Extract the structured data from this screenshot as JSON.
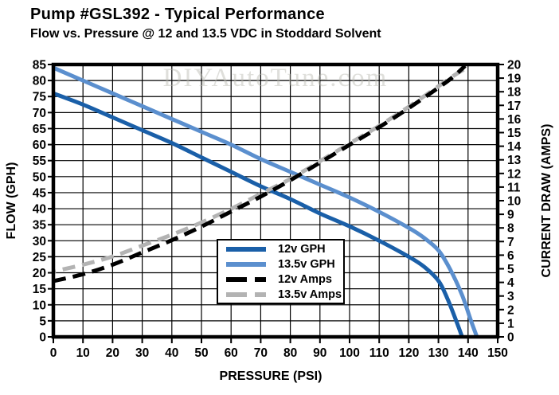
{
  "chart_data": {
    "type": "line",
    "title": "Pump #GSL392 - Typical Performance",
    "subtitle": "Flow vs. Pressure @ 12 and 13.5 VDC in Stoddard Solvent",
    "xlabel": "PRESSURE (PSI)",
    "ylabel_left": "FLOW (GPH)",
    "ylabel_right": "CURRENT DRAW (AMPS)",
    "watermark": "DIYAutoTune.com",
    "grid": true,
    "legend_position": "inside-lower-left-center",
    "xlim": [
      0,
      150
    ],
    "ylim_left": [
      0,
      85
    ],
    "ylim_right": [
      0,
      20
    ],
    "x_ticks": [
      0,
      10,
      20,
      30,
      40,
      50,
      60,
      70,
      80,
      90,
      100,
      110,
      120,
      130,
      140,
      150
    ],
    "y_ticks_left": [
      85,
      80,
      75,
      70,
      65,
      60,
      55,
      50,
      45,
      40,
      35,
      30,
      25,
      20,
      15,
      10,
      5,
      0
    ],
    "y_ticks_right": [
      20,
      19,
      18,
      17,
      16,
      15,
      14,
      13,
      12,
      11,
      10,
      9,
      8,
      7,
      6,
      5,
      4,
      3,
      2,
      1,
      0
    ],
    "colors": {
      "blue_12v": "#1a5fa8",
      "blue_135v": "#5b8fce",
      "black_12v": "#000000",
      "gray_135v": "#b3b3b3"
    },
    "series": [
      {
        "name": "12v GPH",
        "axis": "left",
        "style": "solid",
        "color": "#1a5fa8",
        "points": [
          [
            0,
            76
          ],
          [
            10,
            72.5
          ],
          [
            20,
            68.5
          ],
          [
            30,
            64.5
          ],
          [
            40,
            60.5
          ],
          [
            50,
            56
          ],
          [
            60,
            51.5
          ],
          [
            70,
            47
          ],
          [
            80,
            43
          ],
          [
            90,
            38.5
          ],
          [
            100,
            34.5
          ],
          [
            110,
            30
          ],
          [
            120,
            25
          ],
          [
            125,
            22
          ],
          [
            130,
            17.5
          ],
          [
            133,
            12
          ],
          [
            136,
            5
          ],
          [
            138,
            0
          ]
        ]
      },
      {
        "name": "13.5v GPH",
        "axis": "left",
        "style": "solid",
        "color": "#5b8fce",
        "points": [
          [
            0,
            84
          ],
          [
            10,
            80
          ],
          [
            20,
            76
          ],
          [
            30,
            72
          ],
          [
            40,
            68
          ],
          [
            50,
            64
          ],
          [
            60,
            60
          ],
          [
            70,
            55.5
          ],
          [
            80,
            51.5
          ],
          [
            90,
            47.5
          ],
          [
            100,
            43.5
          ],
          [
            110,
            39
          ],
          [
            120,
            34
          ],
          [
            125,
            31
          ],
          [
            130,
            27
          ],
          [
            134,
            21
          ],
          [
            138,
            13
          ],
          [
            141,
            5
          ],
          [
            143,
            0
          ]
        ]
      },
      {
        "name": "12v Amps",
        "axis": "right",
        "style": "dashed",
        "color": "#000000",
        "points": [
          [
            0,
            4.1
          ],
          [
            10,
            4.6
          ],
          [
            20,
            5.3
          ],
          [
            30,
            6.2
          ],
          [
            40,
            7.1
          ],
          [
            50,
            8.1
          ],
          [
            60,
            9.2
          ],
          [
            70,
            10.3
          ],
          [
            80,
            11.5
          ],
          [
            90,
            12.8
          ],
          [
            100,
            14.1
          ],
          [
            110,
            15.4
          ],
          [
            120,
            16.8
          ],
          [
            130,
            18.3
          ],
          [
            135,
            19.1
          ],
          [
            139,
            19.9
          ]
        ]
      },
      {
        "name": "13.5v Amps",
        "axis": "right",
        "style": "dashed",
        "color": "#b3b3b3",
        "points": [
          [
            0,
            4.8
          ],
          [
            10,
            5.3
          ],
          [
            20,
            5.9
          ],
          [
            30,
            6.7
          ],
          [
            40,
            7.5
          ],
          [
            50,
            8.4
          ],
          [
            60,
            9.4
          ],
          [
            70,
            10.5
          ],
          [
            80,
            11.6
          ],
          [
            90,
            12.9
          ],
          [
            100,
            14.2
          ],
          [
            110,
            15.5
          ],
          [
            120,
            16.9
          ],
          [
            130,
            18.4
          ],
          [
            136,
            19.3
          ],
          [
            140,
            19.8
          ]
        ]
      }
    ]
  }
}
